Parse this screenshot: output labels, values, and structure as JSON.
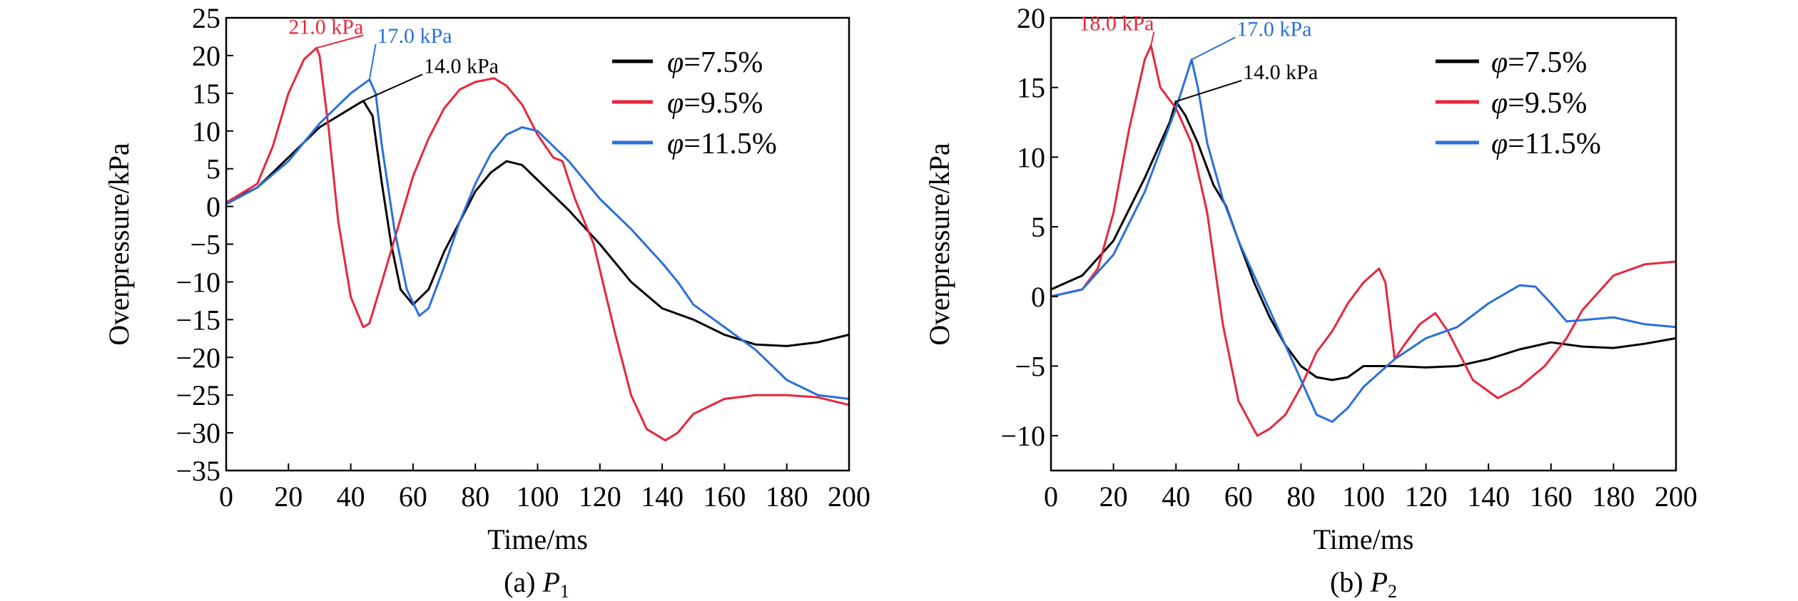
{
  "colors": {
    "phi_7_5": "#000000",
    "phi_9_5": "#e8263c",
    "phi_11_5": "#2a6fdb"
  },
  "chart_data": [
    {
      "type": "line",
      "caption": "(a) P",
      "caption_sub": "1",
      "xlabel": "Time/ms",
      "ylabel": "Overpressure/kPa",
      "xlim": [
        0,
        200
      ],
      "ylim": [
        -35,
        25
      ],
      "xticks": [
        0,
        20,
        40,
        60,
        80,
        100,
        120,
        140,
        160,
        180,
        200
      ],
      "yticks": [
        -35,
        -30,
        -25,
        -20,
        -15,
        -10,
        -5,
        0,
        5,
        10,
        15,
        20,
        25
      ],
      "grid": false,
      "legend_position": "top-right",
      "series": [
        {
          "name": "φ=7.5%",
          "color_key": "phi_7_5",
          "x": [
            0,
            10,
            20,
            30,
            40,
            44,
            47,
            50,
            53,
            56,
            60,
            65,
            70,
            75,
            80,
            85,
            90,
            95,
            100,
            110,
            120,
            130,
            140,
            150,
            160,
            170,
            180,
            190,
            200
          ],
          "y": [
            0.5,
            2.5,
            6.5,
            10.5,
            13,
            14,
            12,
            3,
            -5,
            -11,
            -13,
            -11,
            -6,
            -2,
            2,
            4.5,
            6,
            5.5,
            3.5,
            -0.5,
            -5,
            -10,
            -13.5,
            -15,
            -17,
            -18.3,
            -18.5,
            -18,
            -17
          ]
        },
        {
          "name": "φ=9.5%",
          "color_key": "phi_9_5",
          "x": [
            0,
            10,
            15,
            20,
            25,
            29,
            30,
            33,
            36,
            40,
            44,
            46,
            50,
            55,
            60,
            65,
            70,
            75,
            80,
            86,
            90,
            95,
            100,
            105,
            108,
            112,
            118,
            125,
            130,
            135,
            141,
            145,
            150,
            160,
            170,
            180,
            190,
            200
          ],
          "y": [
            0.5,
            3,
            8,
            15,
            19.5,
            21,
            20,
            10,
            -2,
            -12,
            -16,
            -15.5,
            -10,
            -3,
            4,
            9,
            13,
            15.5,
            16.5,
            17,
            16,
            13.5,
            9.5,
            6.5,
            6,
            1,
            -5,
            -17,
            -25,
            -29.5,
            -31,
            -30,
            -27.5,
            -25.5,
            -25,
            -25,
            -25.3,
            -26.3
          ]
        },
        {
          "name": "φ=11.5%",
          "color_key": "phi_11_5",
          "x": [
            0,
            10,
            20,
            30,
            40,
            46,
            48,
            50,
            54,
            58,
            62,
            65,
            70,
            75,
            80,
            85,
            90,
            95,
            100,
            110,
            120,
            130,
            140,
            145,
            150,
            160,
            170,
            180,
            190,
            200
          ],
          "y": [
            0.3,
            2.5,
            6,
            11,
            15,
            16.8,
            15,
            8,
            -3,
            -11,
            -14.5,
            -13.5,
            -8,
            -2,
            3,
            7,
            9.5,
            10.5,
            10,
            6,
            1,
            -3,
            -7.5,
            -10,
            -13,
            -16,
            -19,
            -23,
            -25,
            -25.5
          ]
        }
      ],
      "annotations": [
        {
          "text": "21.0 kPa",
          "color_key": "phi_9_5",
          "peak": [
            29,
            21
          ],
          "label_at": [
            20,
            22.7
          ]
        },
        {
          "text": "17.0 kPa",
          "color_key": "phi_11_5",
          "peak": [
            46,
            16.8
          ],
          "label_at": [
            48,
            21.5
          ]
        },
        {
          "text": "14.0 kPa",
          "color_key": "phi_7_5",
          "peak": [
            44,
            14
          ],
          "label_at": [
            63,
            17.5
          ]
        }
      ]
    },
    {
      "type": "line",
      "caption": "(b) P",
      "caption_sub": "2",
      "xlabel": "Time/ms",
      "ylabel": "Overpressure/kPa",
      "xlim": [
        0,
        200
      ],
      "ylim": [
        -12.5,
        20
      ],
      "xticks": [
        0,
        20,
        40,
        60,
        80,
        100,
        120,
        140,
        160,
        180,
        200
      ],
      "yticks": [
        -10,
        -5,
        0,
        5,
        10,
        15,
        20
      ],
      "grid": false,
      "legend_position": "top-right",
      "series": [
        {
          "name": "φ=7.5%",
          "color_key": "phi_7_5",
          "x": [
            0,
            10,
            20,
            30,
            38,
            40,
            43,
            47,
            52,
            56,
            60,
            65,
            70,
            75,
            80,
            85,
            90,
            95,
            100,
            110,
            120,
            130,
            140,
            150,
            160,
            170,
            180,
            190,
            200
          ],
          "y": [
            0.5,
            1.5,
            4,
            8.5,
            12.5,
            14,
            13,
            11,
            8,
            6.5,
            4,
            1,
            -1.5,
            -3.5,
            -5,
            -5.8,
            -6,
            -5.8,
            -5,
            -5,
            -5.1,
            -5,
            -4.5,
            -3.8,
            -3.3,
            -3.6,
            -3.7,
            -3.4,
            -3
          ]
        },
        {
          "name": "φ=9.5%",
          "color_key": "phi_9_5",
          "x": [
            0,
            10,
            15,
            20,
            25,
            30,
            32,
            35,
            40,
            45,
            50,
            55,
            60,
            66,
            70,
            75,
            80,
            85,
            90,
            95,
            100,
            105,
            107,
            110,
            113,
            118,
            123,
            127,
            135,
            143,
            150,
            158,
            165,
            170,
            180,
            190,
            200
          ],
          "y": [
            0,
            0.5,
            2,
            6,
            12,
            17,
            18,
            15,
            13.5,
            11,
            6,
            -2,
            -7.5,
            -10,
            -9.5,
            -8.5,
            -6.5,
            -4,
            -2.5,
            -0.5,
            1,
            2,
            1,
            -4.5,
            -3.5,
            -2,
            -1.2,
            -2.5,
            -6,
            -7.3,
            -6.5,
            -5,
            -3,
            -1,
            1.5,
            2.3,
            2.5
          ]
        },
        {
          "name": "φ=11.5%",
          "color_key": "phi_11_5",
          "x": [
            0,
            10,
            20,
            30,
            40,
            45,
            47,
            50,
            55,
            60,
            65,
            70,
            75,
            80,
            85,
            90,
            95,
            100,
            110,
            120,
            130,
            140,
            150,
            155,
            160,
            165,
            170,
            180,
            190,
            200
          ],
          "y": [
            0,
            0.5,
            3,
            7.5,
            13.5,
            17,
            15,
            11,
            7,
            4,
            1.5,
            -1,
            -3.5,
            -6,
            -8.5,
            -9,
            -8,
            -6.5,
            -4.5,
            -3,
            -2.2,
            -0.5,
            0.8,
            0.7,
            -0.5,
            -1.8,
            -1.7,
            -1.5,
            -2,
            -2.2
          ]
        }
      ],
      "annotations": [
        {
          "text": "18.0 kPa",
          "color_key": "phi_9_5",
          "peak": [
            32,
            18
          ],
          "label_at": [
            9,
            19
          ]
        },
        {
          "text": "17.0 kPa",
          "color_key": "phi_11_5",
          "peak": [
            45,
            17
          ],
          "label_at": [
            59,
            18.6
          ]
        },
        {
          "text": "14.0 kPa",
          "color_key": "phi_7_5",
          "peak": [
            40,
            14
          ],
          "label_at": [
            61,
            15.5
          ]
        }
      ]
    }
  ]
}
